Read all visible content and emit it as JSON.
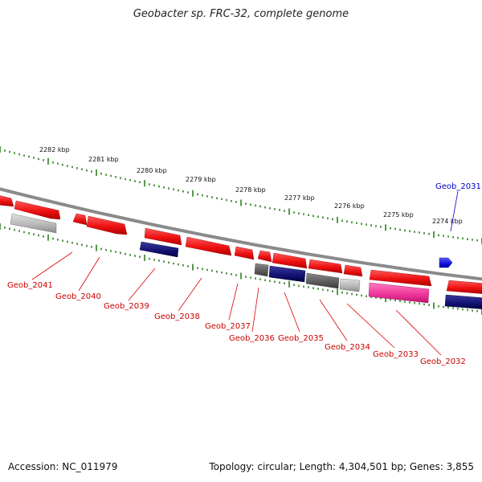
{
  "title": "Geobacter sp. FRC-32, complete genome",
  "accession": "Accession: NC_011979",
  "summary": "Topology: circular; Length: 4,304,501 bp; Genes: 3,855",
  "colors": {
    "backbone": "#8a8a8a",
    "tick": "#2d7d1f",
    "cds": "#ee1111",
    "highlight": "#1111dd",
    "rna": "#ee3399",
    "dark_feature": "#1a1a80",
    "label_red": "#cc0000",
    "label_blue": "#0000cc"
  },
  "scale_labels": [
    "2282 kbp",
    "2281 kbp",
    "2280 kbp",
    "2279 kbp",
    "2278 kbp",
    "2277 kbp",
    "2276 kbp",
    "2275 kbp",
    "2274 kbp"
  ],
  "gene_labels": [
    {
      "text": "Geob_2041",
      "color": "red"
    },
    {
      "text": "Geob_2040",
      "color": "red"
    },
    {
      "text": "Geob_2039",
      "color": "red"
    },
    {
      "text": "Geob_2038",
      "color": "red"
    },
    {
      "text": "Geob_2037",
      "color": "red"
    },
    {
      "text": "Geob_2036",
      "color": "red"
    },
    {
      "text": "Geob_2035",
      "color": "red"
    },
    {
      "text": "Geob_2034",
      "color": "red"
    },
    {
      "text": "Geob_2033",
      "color": "red"
    },
    {
      "text": "Geob_2032",
      "color": "red"
    },
    {
      "text": "Geob_2031",
      "color": "blue"
    }
  ]
}
